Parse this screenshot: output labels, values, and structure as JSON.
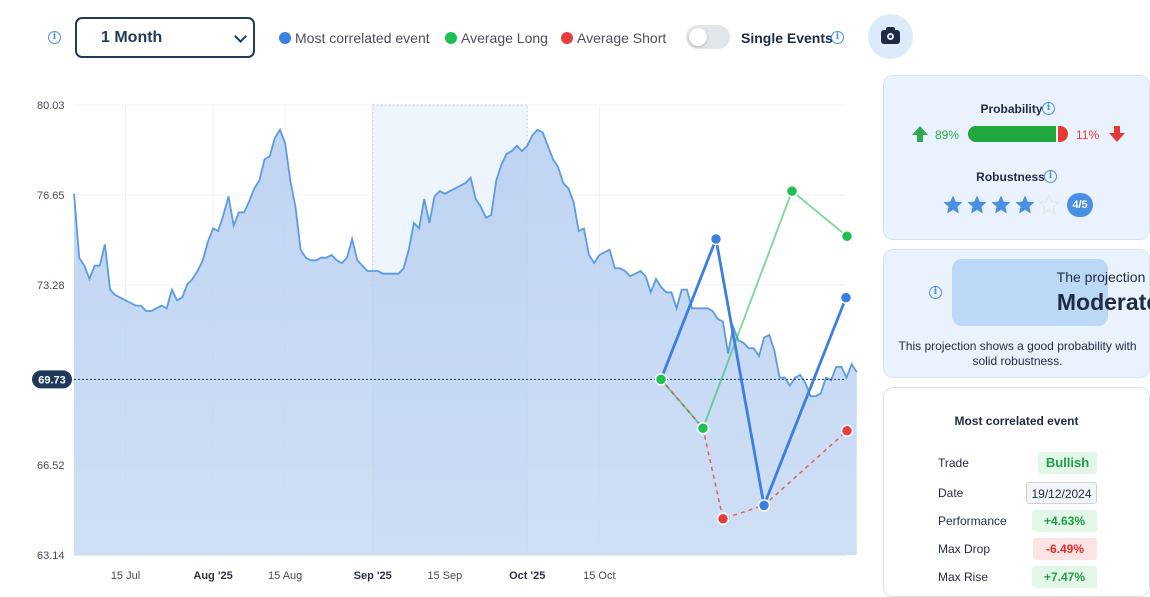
{
  "toolbar": {
    "period": "1 Month",
    "legend": [
      {
        "label": "Most correlated event",
        "color": "#3b7fe0"
      },
      {
        "label": "Average Long",
        "color": "#1fbf54"
      },
      {
        "label": "Average Short",
        "color": "#e53e3e"
      }
    ],
    "single_events_label": "Single Events",
    "single_events_on": false,
    "icons": [
      "info-icon",
      "chevron-down-icon",
      "camera-icon"
    ]
  },
  "chart_data": {
    "type": "line",
    "y_ticks": [
      "80.03",
      "76.65",
      "73.28",
      "69.73",
      "66.52",
      "63.14"
    ],
    "ylim": [
      63.14,
      80.03
    ],
    "current_value": "69.73",
    "x_ticks": [
      {
        "label": "15 Jul",
        "bold": false
      },
      {
        "label": "Aug '25",
        "bold": true
      },
      {
        "label": "15 Aug",
        "bold": false
      },
      {
        "label": "Sep '25",
        "bold": true
      },
      {
        "label": "15 Sep",
        "bold": false
      },
      {
        "label": "Oct '25",
        "bold": true
      },
      {
        "label": "15 Oct",
        "bold": false
      }
    ],
    "history": {
      "x_start": "2025-07-05",
      "step_days": 1,
      "values": [
        76.7,
        74.3,
        74.0,
        73.5,
        74.0,
        74.0,
        74.8,
        73.1,
        72.9,
        72.8,
        72.7,
        72.6,
        72.5,
        72.5,
        72.3,
        72.3,
        72.4,
        72.5,
        72.4,
        73.1,
        72.7,
        72.8,
        73.3,
        73.5,
        73.8,
        74.2,
        74.9,
        75.4,
        75.3,
        75.9,
        76.6,
        75.5,
        76.0,
        76.0,
        76.4,
        76.9,
        77.2,
        78.0,
        78.1,
        78.8,
        79.1,
        78.6,
        77.2,
        76.2,
        74.6,
        74.3,
        74.2,
        74.2,
        74.3,
        74.3,
        74.4,
        74.2,
        74.1,
        74.3,
        75.0,
        74.2,
        74.0,
        73.8,
        73.8,
        73.8,
        73.7,
        73.7,
        73.7,
        73.7,
        73.9,
        74.6,
        75.6,
        75.4,
        76.5,
        75.6,
        76.6,
        76.8,
        76.7,
        76.8,
        76.9,
        77.0,
        77.1,
        77.3,
        76.5,
        76.2,
        75.8,
        75.9,
        77.2,
        77.8,
        78.2,
        78.3,
        78.5,
        78.3,
        78.5,
        78.9,
        79.1,
        79.0,
        78.5,
        78.0,
        77.7,
        77.1,
        76.9,
        76.4,
        75.3,
        75.4,
        74.4,
        74.1,
        74.4,
        74.5,
        74.6,
        73.9,
        73.9,
        73.8,
        73.6,
        73.7,
        73.8,
        73.6,
        73.0,
        73.5,
        73.2,
        73.0,
        73.0,
        72.4,
        73.1,
        73.1,
        72.4,
        72.4,
        72.4,
        72.4,
        72.3,
        72.0,
        71.9,
        70.7,
        71.7,
        71.2,
        71.1,
        70.9,
        70.9,
        70.6,
        71.3,
        71.4,
        70.8,
        69.8,
        69.8,
        69.5,
        69.8,
        69.9,
        69.6,
        69.1,
        69.1,
        69.2,
        69.8,
        69.7,
        70.2,
        70.2,
        69.8,
        70.3,
        70.0
      ]
    },
    "shaded_period": [
      "Sep '25",
      "Oct '25"
    ],
    "series": [
      {
        "name": "Most correlated event",
        "color": "#3b7fe0",
        "values": [
          69.73,
          75.0,
          65.0,
          72.8
        ]
      },
      {
        "name": "Average Long",
        "color": "#1fbf54",
        "values": [
          69.73,
          67.9,
          76.8,
          75.1
        ]
      },
      {
        "name": "Average Short",
        "color": "#e53e3e",
        "values": [
          69.73,
          67.9,
          64.5,
          65.0,
          67.8
        ]
      }
    ]
  },
  "probability": {
    "title": "Probability",
    "long_pct": "89%",
    "short_pct": "11%",
    "long_fraction": 0.89
  },
  "robustness": {
    "title": "Robustness",
    "stars": 4,
    "max": 5,
    "badge": "4/5"
  },
  "projection": {
    "prefix": "The projection is",
    "value": "Moderate",
    "description": "This projection shows a good probability with solid robustness."
  },
  "correlated_event": {
    "title": "Most correlated event",
    "rows": [
      {
        "label": "Trade",
        "value": "Bullish",
        "style": "green"
      },
      {
        "label": "Date",
        "value": "19/12/2024",
        "style": "date"
      },
      {
        "label": "Performance",
        "value": "+4.63%",
        "style": "green"
      },
      {
        "label": "Max Drop",
        "value": "-6.49%",
        "style": "red"
      },
      {
        "label": "Max Rise",
        "value": "+7.47%",
        "style": "green"
      }
    ]
  }
}
